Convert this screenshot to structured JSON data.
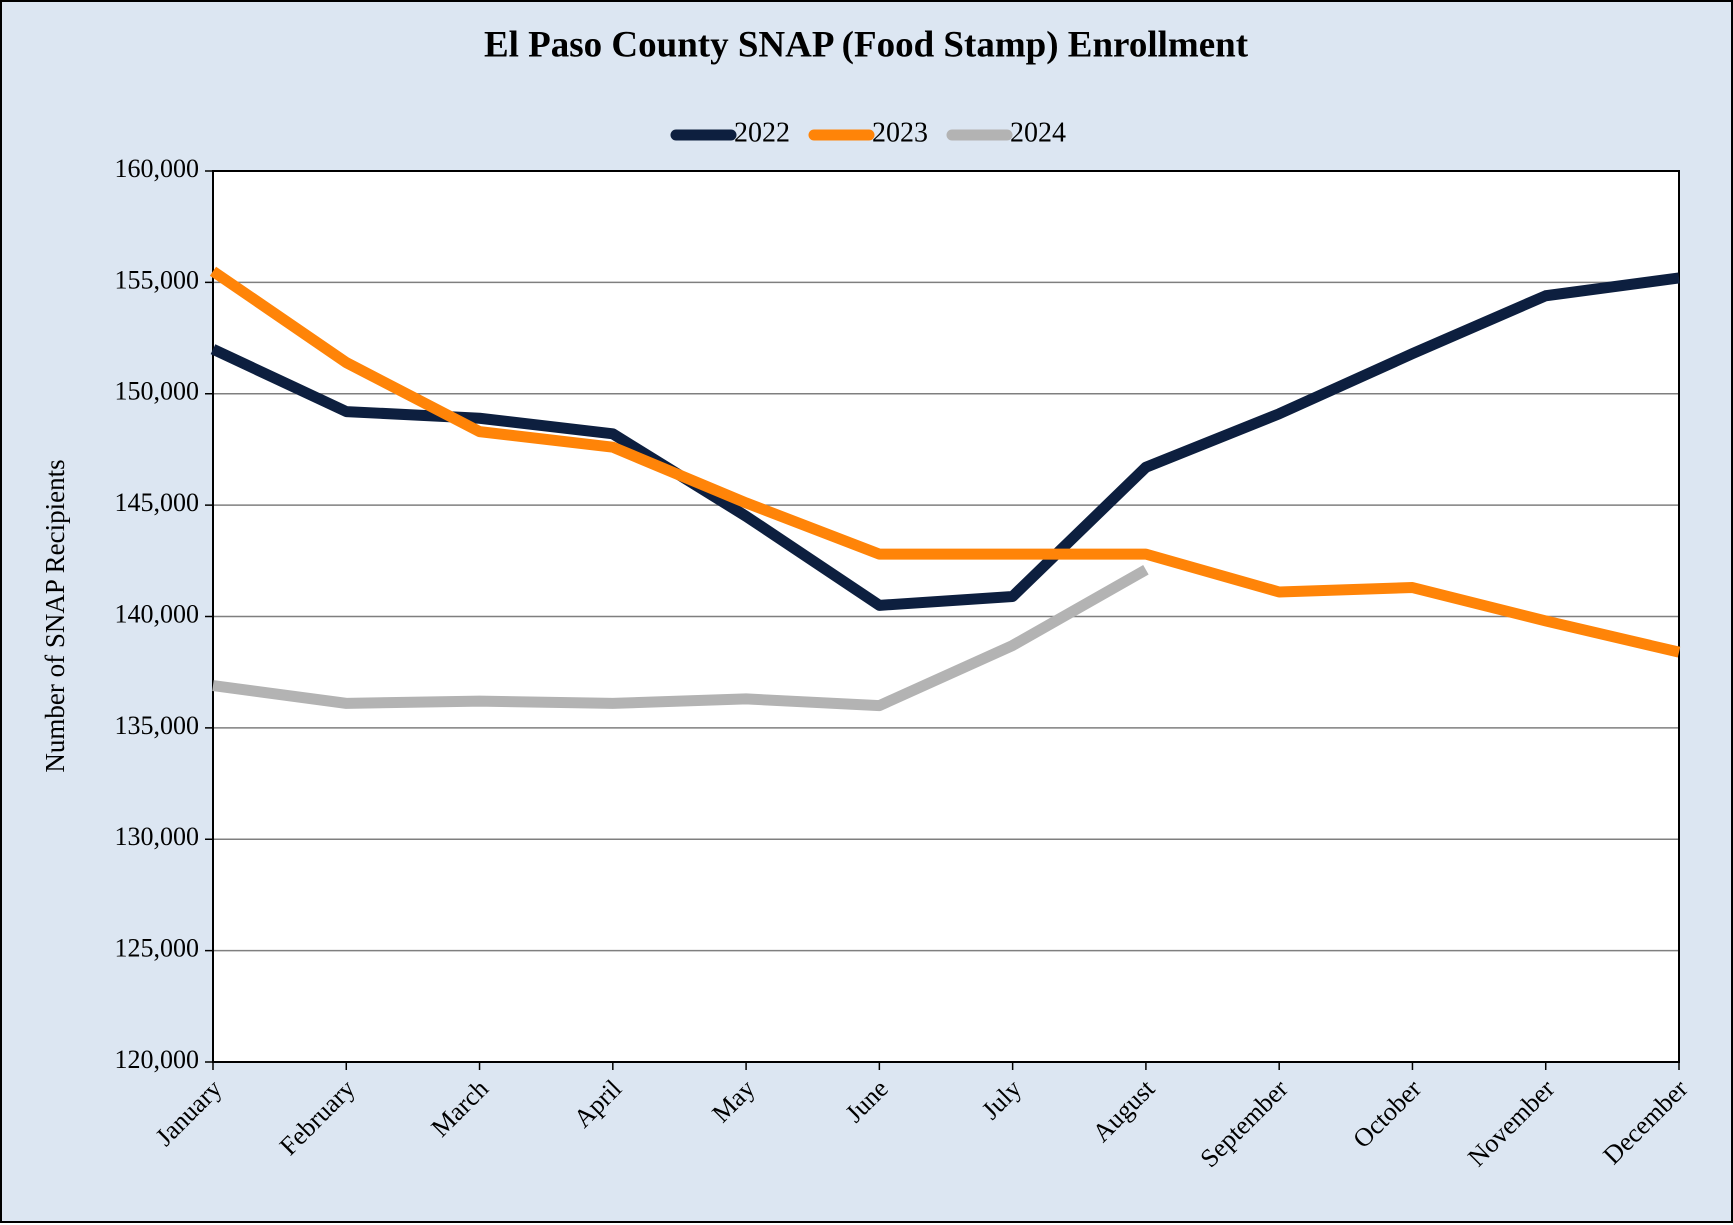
{
  "chart_data": {
    "type": "line",
    "title": "El Paso County SNAP (Food Stamp) Enrollment",
    "y_label": "Number of SNAP Recipients",
    "categories": [
      "January",
      "February",
      "March",
      "April",
      "May",
      "June",
      "July",
      "August",
      "September",
      "October",
      "November",
      "December"
    ],
    "series": [
      {
        "name": "2022",
        "color": "#0d1f3f",
        "values": [
          152000,
          149200,
          148900,
          148200,
          144500,
          140500,
          140900,
          146700,
          149100,
          151800,
          154400,
          155200
        ]
      },
      {
        "name": "2023",
        "color": "#ff8408",
        "values": [
          155500,
          151400,
          148300,
          147600,
          145100,
          142800,
          142800,
          142800,
          141100,
          141300,
          139800,
          138400
        ]
      },
      {
        "name": "2024",
        "color": "#b3b3b3",
        "values": [
          136900,
          136100,
          136200,
          136100,
          136300,
          136000,
          138700,
          142100,
          null,
          null,
          null,
          null
        ]
      }
    ],
    "ylim": [
      120000,
      160000
    ],
    "yticks": [
      {
        "value": 120000,
        "label": "120,000"
      },
      {
        "value": 125000,
        "label": "125,000"
      },
      {
        "value": 130000,
        "label": "130,000"
      },
      {
        "value": 135000,
        "label": "135,000"
      },
      {
        "value": 140000,
        "label": "140,000"
      },
      {
        "value": 145000,
        "label": "145,000"
      },
      {
        "value": 150000,
        "label": "150,000"
      },
      {
        "value": 155000,
        "label": "155,000"
      },
      {
        "value": 160000,
        "label": "160,000"
      }
    ],
    "grid": true,
    "legend": "top"
  }
}
